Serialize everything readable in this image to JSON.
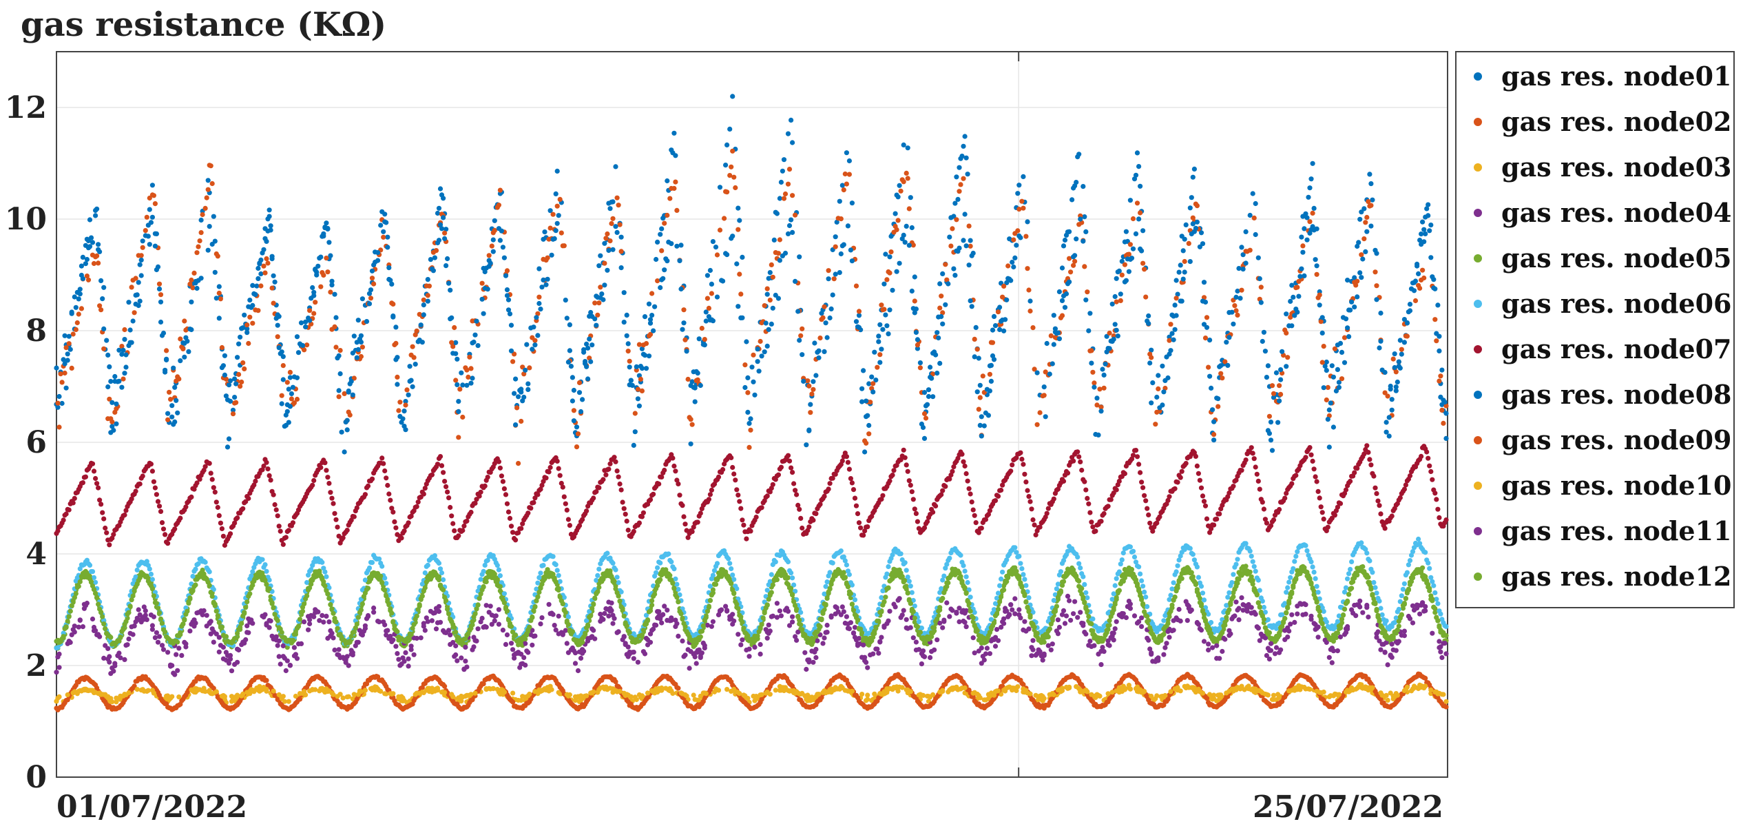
{
  "chart_data": {
    "type": "scatter",
    "title": "",
    "ylabel": "gas resistance (KΩ)",
    "xlabel": "",
    "x_tick_labels": [
      "01/07/2022",
      "25/07/2022"
    ],
    "x_range": [
      "2022-07-01",
      "2022-07-25"
    ],
    "ylim": [
      0,
      13
    ],
    "y_ticks": [
      0,
      2,
      4,
      6,
      8,
      10,
      12
    ],
    "grid": true,
    "legend_position": "right",
    "series": [
      {
        "name": "gas res. node01",
        "color": "#0072BD",
        "band": "high",
        "base": 8.0,
        "amp": 2.2,
        "trend": 0.7,
        "noise": 1.1,
        "peaks": [
          10.3,
          10.5,
          11.0,
          10.0,
          9.9,
          10.2,
          10.5,
          10.6,
          11.0,
          10.9,
          11.5,
          12.0,
          11.9,
          11.4,
          11.5,
          11.5,
          10.9,
          11.4,
          11.1,
          11.0,
          10.6,
          10.9,
          11.0
        ]
      },
      {
        "name": "gas res. node02",
        "color": "#D95319",
        "band": "high",
        "base": 7.8,
        "amp": 2.3,
        "trend": 0.6,
        "noise": 1.0,
        "peaks": [
          9.5,
          10.6,
          10.9,
          9.3,
          9.2,
          9.9,
          10.2,
          10.4,
          10.5,
          10.5,
          10.8,
          11.2,
          11.0,
          11.0,
          11.0,
          11.0,
          10.5,
          10.0,
          10.5,
          10.4,
          10.0,
          10.1,
          10.3
        ]
      },
      {
        "name": "gas res. node03",
        "color": "#EDB120",
        "band": "low",
        "base": 1.45,
        "amp": 0.1,
        "trend": 0.05,
        "noise": 0.05
      },
      {
        "name": "gas res. node04",
        "color": "#7E2F8E",
        "band": "lowmid",
        "base": 2.45,
        "amp": 0.45,
        "trend": 0.2,
        "noise": 0.25
      },
      {
        "name": "gas res. node05",
        "color": "#77AC30",
        "band": "mid",
        "base": 3.0,
        "amp": 0.65,
        "trend": 0.1,
        "noise": 0.08
      },
      {
        "name": "gas res. node06",
        "color": "#4DBEEE",
        "band": "mid",
        "base": 3.1,
        "amp": 0.75,
        "trend": 0.35,
        "noise": 0.08
      },
      {
        "name": "gas res. node07",
        "color": "#A2142F",
        "band": "upmid",
        "base": 4.9,
        "amp": 0.75,
        "trend": 0.3,
        "noise": 0.08
      },
      {
        "name": "gas res. node08",
        "color": "#0072BD",
        "band": "high2",
        "base": 8.0,
        "amp": 2.0,
        "trend": 0.6,
        "noise": 1.0
      },
      {
        "name": "gas res. node09",
        "color": "#D95319",
        "band": "low2",
        "base": 1.5,
        "amp": 0.28,
        "trend": 0.05,
        "noise": 0.04
      },
      {
        "name": "gas res. node10",
        "color": "#EDB120",
        "band": "low",
        "base": 1.5,
        "amp": 0.08,
        "trend": 0.05,
        "noise": 0.05
      },
      {
        "name": "gas res. node11",
        "color": "#7E2F8E",
        "band": "lowmid",
        "base": 2.5,
        "amp": 0.4,
        "trend": 0.2,
        "noise": 0.3
      },
      {
        "name": "gas res. node12",
        "color": "#77AC30",
        "band": "mid",
        "base": 3.0,
        "amp": 0.6,
        "trend": 0.1,
        "noise": 0.08
      }
    ]
  }
}
